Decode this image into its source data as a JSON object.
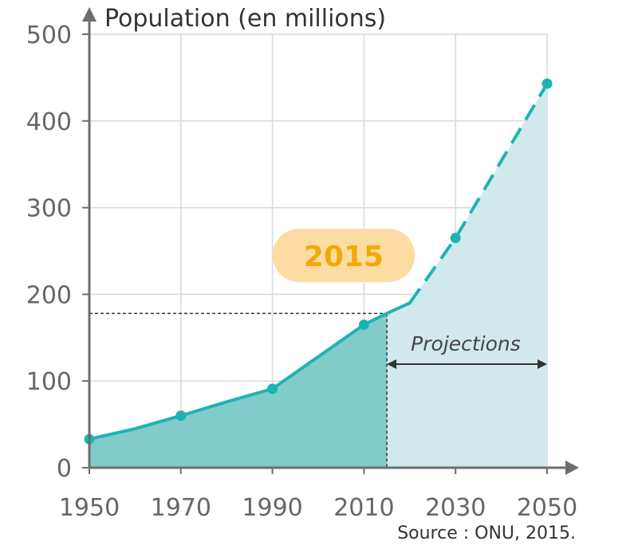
{
  "chart_data": {
    "type": "area",
    "ylabel": "Population (en millions)",
    "x_ticks": [
      "1950",
      "1970",
      "1990",
      "2010",
      "2030",
      "2050"
    ],
    "y_ticks": [
      "0",
      "100",
      "200",
      "300",
      "400",
      "500"
    ],
    "xlim": [
      1950,
      2050
    ],
    "ylim": [
      0,
      500
    ],
    "grid": true,
    "series_observed": {
      "points": [
        {
          "x": 1950,
          "y": 33
        },
        {
          "x": 1970,
          "y": 60
        },
        {
          "x": 1990,
          "y": 91
        },
        {
          "x": 2010,
          "y": 165
        }
      ],
      "line_points": [
        {
          "x": 1950,
          "y": 33
        },
        {
          "x": 1960,
          "y": 45
        },
        {
          "x": 1970,
          "y": 60
        },
        {
          "x": 1980,
          "y": 76
        },
        {
          "x": 1990,
          "y": 91
        },
        {
          "x": 2000,
          "y": 128
        },
        {
          "x": 2010,
          "y": 165
        },
        {
          "x": 2015,
          "y": 178
        },
        {
          "x": 2020,
          "y": 190
        }
      ]
    },
    "series_projection": {
      "points": [
        {
          "x": 2030,
          "y": 265
        },
        {
          "x": 2050,
          "y": 443
        }
      ],
      "line_points": [
        {
          "x": 2020,
          "y": 190
        },
        {
          "x": 2030,
          "y": 265
        },
        {
          "x": 2050,
          "y": 443
        }
      ]
    },
    "highlight": {
      "x": 2015,
      "y": 178,
      "label": "2015"
    },
    "projection_range": {
      "from": 2015,
      "to": 2050,
      "label": "Projections"
    },
    "source": "Source : ONU, 2015.",
    "colors": {
      "line": "#1EB3B3",
      "observed_fill": "#82CBCB",
      "projection_fill": "#D1E9EC",
      "grid": "#D9D9D9",
      "axis": "#6D6D6D",
      "badge_bg": "#FDDCA3",
      "badge_text": "#F2A900"
    }
  }
}
